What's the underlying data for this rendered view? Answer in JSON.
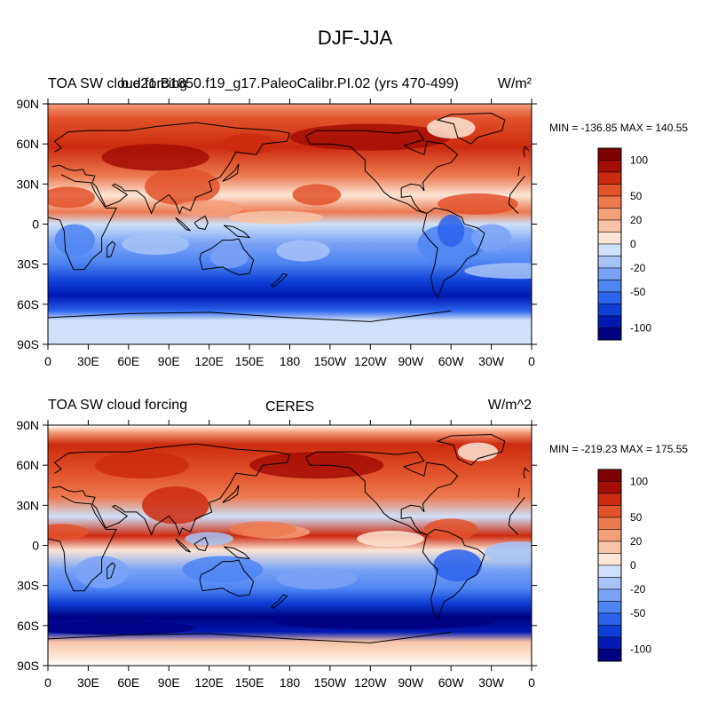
{
  "figure": {
    "title": "DJF-JJA"
  },
  "colors": {
    "levels": [
      "#000080",
      "#0019b3",
      "#0d3ed6",
      "#2a62ec",
      "#4d85f2",
      "#7aa3f5",
      "#a6c3f7",
      "#cfe0f8",
      "#fbe5d6",
      "#f8c3a6",
      "#f39f7a",
      "#ec7a4f",
      "#e2522b",
      "#cc2a0e",
      "#a50d04",
      "#7f0000"
    ]
  },
  "chart_data": [
    {
      "type": "heatmap",
      "title_left": "TOA SW cloud forcing",
      "title_center": "b.e21.B1850.f19_g17.PaleoCalibr.PI.02 (yrs 470-499)",
      "units": "W/m²",
      "stats": "MIN = -136.85 MAX = 140.55",
      "xticks": [
        "0",
        "30E",
        "60E",
        "90E",
        "120E",
        "150E",
        "180",
        "150W",
        "120W",
        "90W",
        "60W",
        "30W",
        "0"
      ],
      "yticks": [
        "90N",
        "60N",
        "30N",
        "0",
        "30S",
        "60S",
        "90S"
      ],
      "xlim": [
        0,
        360
      ],
      "ylim": [
        -90,
        90
      ],
      "colorbar_labels": [
        "100",
        "50",
        "20",
        "0",
        "-20",
        "-50",
        "-100"
      ],
      "colorbar_levels": [
        -130,
        -110,
        -90,
        -70,
        -50,
        -30,
        -20,
        -10,
        0,
        10,
        20,
        30,
        50,
        70,
        90,
        110,
        130
      ]
    },
    {
      "type": "heatmap",
      "title_left": "TOA SW cloud forcing",
      "title_center": "CERES",
      "units": "W/m^2",
      "stats": "MIN = -219.23 MAX = 175.55",
      "xticks": [
        "0",
        "30E",
        "60E",
        "90E",
        "120E",
        "150E",
        "180",
        "150W",
        "120W",
        "90W",
        "60W",
        "30W",
        "0"
      ],
      "yticks": [
        "90N",
        "60N",
        "30N",
        "0",
        "30S",
        "60S",
        "90S"
      ],
      "xlim": [
        0,
        360
      ],
      "ylim": [
        -90,
        90
      ],
      "colorbar_labels": [
        "100",
        "50",
        "20",
        "0",
        "-20",
        "-50",
        "-100"
      ],
      "colorbar_levels": [
        -130,
        -110,
        -90,
        -70,
        -50,
        -30,
        -20,
        -10,
        0,
        10,
        20,
        30,
        50,
        70,
        90,
        110,
        130
      ]
    }
  ]
}
